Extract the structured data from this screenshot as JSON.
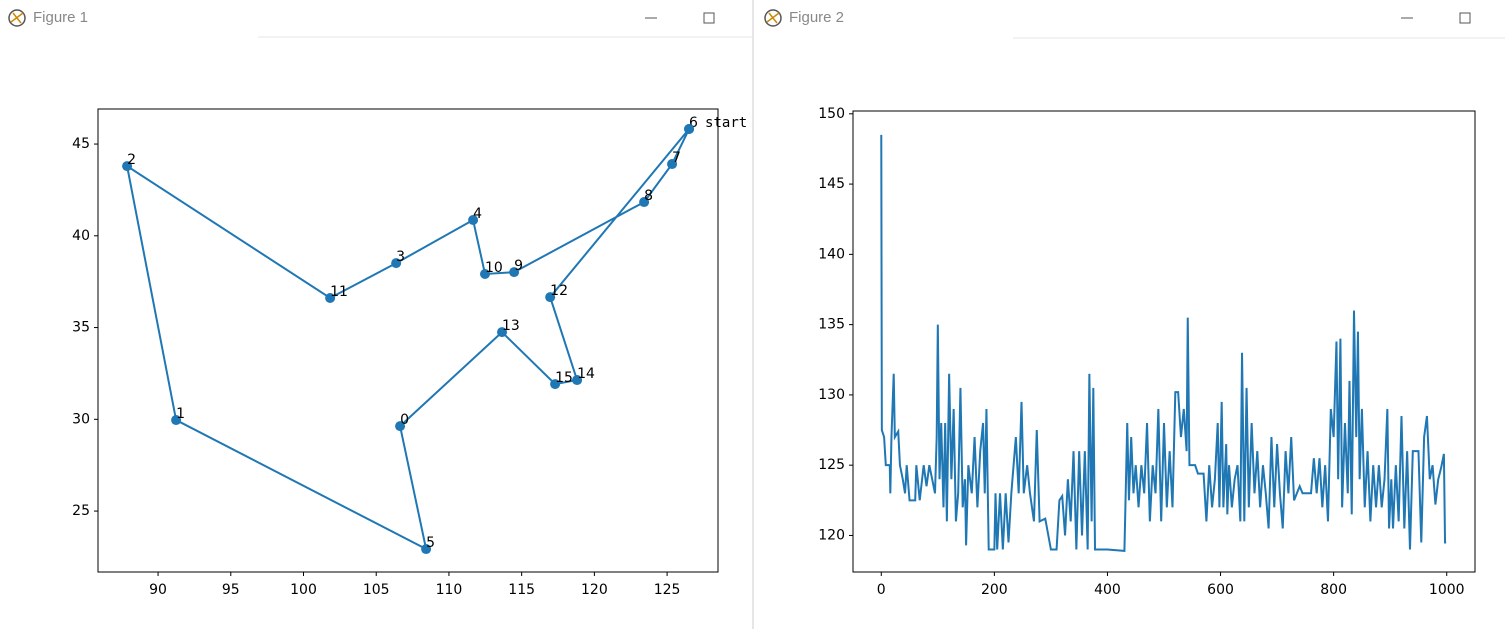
{
  "windows": [
    {
      "title": "Figure 1"
    },
    {
      "title": "Figure 2"
    }
  ],
  "chart_data": [
    {
      "type": "scatter",
      "connect": true,
      "color": "#1f77b4",
      "x": [
        126.51,
        125.34,
        123.42,
        114.48,
        112.48,
        111.66,
        106.37,
        101.83,
        87.87,
        91.24,
        108.43,
        106.64,
        113.65,
        117.3,
        118.81,
        116.96,
        126.51
      ],
      "values": [
        45.82,
        43.91,
        41.84,
        38.02,
        37.92,
        40.86,
        38.51,
        36.61,
        43.8,
        29.96,
        22.93,
        29.63,
        34.75,
        31.92,
        32.14,
        36.66,
        45.82
      ],
      "point_labels": [
        "6",
        "7",
        "8",
        "9",
        "10",
        "4",
        "3",
        "11",
        "2",
        "1",
        "5",
        "0",
        "13",
        "15",
        "14",
        "12",
        null
      ],
      "annotation": "start",
      "xlim": [
        85.87,
        128.5
      ],
      "ylim": [
        21.68,
        46.91
      ],
      "xticks": [
        90,
        95,
        100,
        105,
        110,
        115,
        120,
        125
      ],
      "yticks": [
        25,
        30,
        35,
        40,
        45
      ]
    },
    {
      "type": "line",
      "color": "#1f77b4",
      "x": [
        0,
        1,
        5,
        8,
        15,
        16,
        18,
        22,
        24,
        30,
        33,
        38,
        42,
        45,
        50,
        60,
        62,
        68,
        75,
        80,
        85,
        90,
        95,
        98,
        100,
        103,
        106,
        110,
        113,
        116,
        120,
        124,
        128,
        132,
        136,
        140,
        144,
        148,
        150,
        154,
        160,
        165,
        170,
        175,
        180,
        183,
        186,
        190,
        200,
        202,
        205,
        210,
        215,
        220,
        225,
        230,
        238,
        243,
        248,
        252,
        258,
        263,
        270,
        275,
        280,
        290,
        300,
        310,
        315,
        320,
        325,
        330,
        335,
        340,
        345,
        350,
        355,
        360,
        365,
        368,
        372,
        375,
        378,
        385,
        400,
        430,
        435,
        438,
        442,
        446,
        450,
        455,
        460,
        465,
        470,
        475,
        480,
        485,
        490,
        495,
        500,
        505,
        510,
        515,
        520,
        525,
        530,
        535,
        540,
        542,
        545,
        555,
        560,
        570,
        575,
        580,
        585,
        590,
        595,
        598,
        602,
        605,
        610,
        612,
        615,
        620,
        625,
        630,
        635,
        638,
        642,
        646,
        650,
        655,
        660,
        665,
        670,
        675,
        680,
        685,
        690,
        695,
        700,
        705,
        710,
        715,
        720,
        725,
        730,
        735,
        740,
        745,
        760,
        765,
        770,
        775,
        780,
        785,
        790,
        795,
        800,
        805,
        808,
        812,
        815,
        820,
        825,
        828,
        832,
        836,
        840,
        843,
        846,
        850,
        855,
        860,
        865,
        870,
        875,
        880,
        885,
        890,
        895,
        898,
        902,
        905,
        910,
        915,
        920,
        925,
        930,
        935,
        940,
        950,
        955,
        960,
        965,
        970,
        975,
        980,
        985,
        990,
        995,
        997,
        999
      ],
      "values": [
        148.5,
        127.5,
        127,
        125,
        125,
        123,
        127,
        131.5,
        127,
        127.4,
        125,
        124,
        123,
        125,
        122.5,
        122.5,
        125,
        122.5,
        125,
        123.5,
        125,
        124,
        123,
        127,
        135,
        124,
        128,
        122,
        128,
        121,
        131.5,
        124,
        129,
        121,
        123,
        130.5,
        122,
        124,
        119.3,
        125,
        123,
        127,
        122,
        126,
        128,
        123,
        129,
        119,
        119,
        123,
        119,
        123,
        119,
        123,
        119.5,
        123,
        127,
        123,
        129.5,
        123,
        125,
        123,
        121,
        127.5,
        121,
        121.2,
        119,
        119,
        122.5,
        122.8,
        120,
        124,
        121,
        126,
        119,
        126,
        120,
        126,
        119,
        131.5,
        121,
        130.5,
        119,
        119,
        119,
        118.9,
        128,
        122.5,
        127,
        123,
        125,
        122,
        125,
        123,
        128,
        121,
        125,
        123,
        129,
        121,
        128,
        122,
        126,
        122,
        130.2,
        130.2,
        127,
        129,
        126,
        135.5,
        125,
        125,
        124.4,
        124.4,
        121,
        125,
        122,
        124,
        128,
        122,
        129.5,
        122,
        126.5,
        121.5,
        125,
        122,
        124,
        125,
        121,
        133,
        121,
        130.5,
        122,
        128,
        123,
        126,
        122,
        125,
        123,
        120.5,
        127,
        122,
        126.5,
        123,
        120.5,
        126,
        123,
        127,
        122.5,
        123,
        123.5,
        123,
        123,
        125.5,
        123,
        125.5,
        122,
        125,
        121,
        129,
        127,
        133.8,
        124,
        134,
        122,
        128,
        123,
        131,
        121.5,
        136,
        127,
        134.5,
        124,
        129,
        122,
        126,
        121,
        125,
        122,
        125,
        122,
        124,
        129,
        120.5,
        124,
        120.5,
        125,
        121,
        128.5,
        120.5,
        126,
        119,
        126,
        126,
        119.5,
        127,
        128.5,
        124,
        125,
        122.2,
        124,
        124.8,
        125.8,
        119.5,
        119.5
      ],
      "xlim": [
        -50,
        1050
      ],
      "ylim": [
        117.4,
        150.2
      ],
      "xticks": [
        0,
        200,
        400,
        600,
        800,
        1000
      ],
      "yticks": [
        120,
        125,
        130,
        135,
        140,
        145,
        150
      ]
    }
  ]
}
